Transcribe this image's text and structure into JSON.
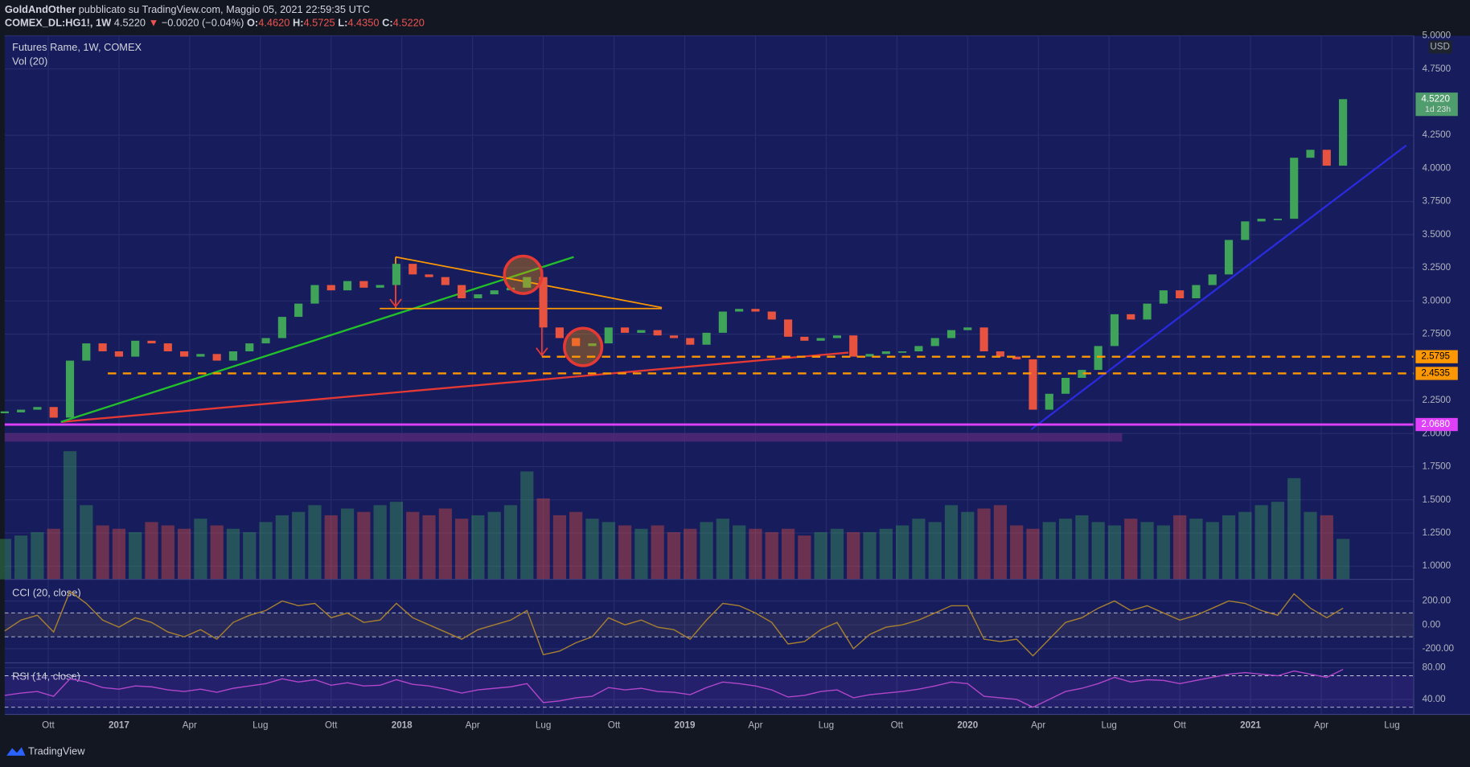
{
  "header": {
    "author": "GoldAndOther",
    "published": "pubblicato su TradingView.com, Maggio 05, 2021 22:59:35 UTC",
    "symbol": "COMEX_DL:HG1!, 1W",
    "last": "4.5220",
    "arrow": "▼",
    "change": "−0.0020 (−0.04%)",
    "o_label": "O:",
    "o": "4.4620",
    "h_label": "H:",
    "h": "4.5725",
    "l_label": "L:",
    "l": "4.4350",
    "c_label": "C:",
    "c": "4.5220"
  },
  "footer": {
    "brand": "TradingView"
  },
  "chart_data": {
    "type": "candlestick",
    "title": "Futures Rame, 1W, COMEX",
    "subtitle": "Vol (20)",
    "currency": "USD",
    "up_color": "#3fa45a",
    "down_color": "#e8533f",
    "grid": true,
    "x": [
      0,
      3,
      6,
      9,
      12,
      15,
      18,
      21,
      24,
      27,
      30,
      33,
      36,
      39,
      42,
      45,
      48,
      51,
      54,
      57,
      60,
      63,
      66,
      69,
      72,
      75,
      78,
      81,
      84,
      87,
      90,
      93,
      96,
      99,
      102,
      105,
      108,
      111,
      114,
      117,
      120,
      123,
      126,
      129,
      132,
      135,
      138,
      141,
      144,
      147,
      150,
      153,
      156,
      159,
      162,
      165,
      168,
      171,
      174,
      177,
      180,
      183,
      186,
      189,
      192,
      195,
      198,
      201,
      204,
      207,
      210,
      213,
      216,
      219,
      222,
      225,
      228,
      231,
      234,
      237,
      240,
      243,
      246
    ],
    "values": [
      2.16,
      2.18,
      2.2,
      2.12,
      2.55,
      2.68,
      2.62,
      2.58,
      2.7,
      2.68,
      2.62,
      2.58,
      2.6,
      2.55,
      2.62,
      2.68,
      2.72,
      2.88,
      2.98,
      3.12,
      3.08,
      3.15,
      3.1,
      3.12,
      3.28,
      3.2,
      3.18,
      3.12,
      3.02,
      3.05,
      3.08,
      3.1,
      3.18,
      2.8,
      2.72,
      2.66,
      2.68,
      2.8,
      2.76,
      2.78,
      2.74,
      2.72,
      2.67,
      2.76,
      2.92,
      2.94,
      2.92,
      2.86,
      2.73,
      2.7,
      2.72,
      2.74,
      2.58,
      2.6,
      2.62,
      2.62,
      2.66,
      2.72,
      2.78,
      2.8,
      2.62,
      2.58,
      2.56,
      2.18,
      2.3,
      2.42,
      2.48,
      2.66,
      2.9,
      2.86,
      2.98,
      3.08,
      3.02,
      3.12,
      3.2,
      3.46,
      3.6,
      3.62,
      3.62,
      4.08,
      4.14,
      4.02,
      4.522
    ],
    "xlim": [
      0,
      259
    ],
    "xticks": [
      {
        "value": 8,
        "label": "Ott"
      },
      {
        "value": 21,
        "label": "2017"
      },
      {
        "value": 34,
        "label": "Apr"
      },
      {
        "value": 47,
        "label": "Lug"
      },
      {
        "value": 60,
        "label": "Ott"
      },
      {
        "value": 73,
        "label": "2018"
      },
      {
        "value": 86,
        "label": "Apr"
      },
      {
        "value": 99,
        "label": "Lug"
      },
      {
        "value": 112,
        "label": "Ott"
      },
      {
        "value": 125,
        "label": "2019"
      },
      {
        "value": 138,
        "label": "Apr"
      },
      {
        "value": 151,
        "label": "Lug"
      },
      {
        "value": 164,
        "label": "Ott"
      },
      {
        "value": 177,
        "label": "2020"
      },
      {
        "value": 190,
        "label": "Apr"
      },
      {
        "value": 203,
        "label": "Lug"
      },
      {
        "value": 216,
        "label": "Ott"
      },
      {
        "value": 229,
        "label": "2021"
      },
      {
        "value": 242,
        "label": "Apr"
      },
      {
        "value": 255,
        "label": "Lug"
      }
    ],
    "ylim": [
      0.9,
      5.0
    ],
    "yticks": [
      {
        "value": 1,
        "label": "1.0000"
      },
      {
        "value": 1.25,
        "label": "1.2500"
      },
      {
        "value": 1.5,
        "label": "1.5000"
      },
      {
        "value": 1.75,
        "label": "1.7500"
      },
      {
        "value": 2,
        "label": "2.0000"
      },
      {
        "value": 2.25,
        "label": "2.2500"
      },
      {
        "value": 2.75,
        "label": "2.7500"
      },
      {
        "value": 3,
        "label": "3.0000"
      },
      {
        "value": 3.25,
        "label": "3.2500"
      },
      {
        "value": 3.5,
        "label": "3.5000"
      },
      {
        "value": 3.75,
        "label": "3.7500"
      },
      {
        "value": 4,
        "label": "4.0000"
      },
      {
        "value": 4.25,
        "label": "4.2500"
      },
      {
        "value": 4.75,
        "label": "4.7500"
      },
      {
        "value": 5,
        "label": "5.0000"
      }
    ],
    "last_price": {
      "value": 4.522,
      "label": "4.5220",
      "countdown": "1d 23h",
      "color": "#4f9c6c"
    },
    "levels": [
      {
        "value": 2.5795,
        "label": "2.5795",
        "color": "#ff9800",
        "dashed": true
      },
      {
        "value": 2.4535,
        "label": "2.4535",
        "color": "#ff9800",
        "dashed": true
      },
      {
        "value": 2.068,
        "label": "2.0680",
        "color": "#e040fb",
        "dashed": false
      }
    ],
    "volume": {
      "ylim": [
        0,
        250
      ],
      "values": [
        60,
        65,
        70,
        75,
        190,
        110,
        80,
        75,
        70,
        85,
        80,
        75,
        90,
        80,
        75,
        70,
        85,
        95,
        100,
        110,
        95,
        105,
        100,
        110,
        115,
        100,
        95,
        105,
        90,
        95,
        100,
        110,
        160,
        120,
        95,
        100,
        90,
        85,
        80,
        75,
        80,
        70,
        75,
        85,
        90,
        80,
        75,
        70,
        75,
        65,
        70,
        75,
        70,
        70,
        75,
        80,
        90,
        85,
        110,
        100,
        105,
        110,
        80,
        75,
        85,
        90,
        95,
        85,
        80,
        90,
        85,
        80,
        95,
        90,
        85,
        95,
        100,
        110,
        115,
        150,
        100,
        95,
        60
      ]
    },
    "indicators": [
      {
        "type": "line",
        "title": "CCI (20, close)",
        "color": "#a8802f",
        "band_color": "#8a7a5a",
        "ylim": [
          -318,
          365
        ],
        "yticks": [
          {
            "value": 200,
            "label": "200.00"
          },
          {
            "value": 0,
            "label": "0.00"
          },
          {
            "value": -200,
            "label": "-200.00"
          }
        ],
        "bands": [
          -100,
          100
        ],
        "values": [
          -50,
          40,
          80,
          -60,
          280,
          180,
          40,
          -20,
          60,
          20,
          -60,
          -100,
          -40,
          -120,
          20,
          80,
          120,
          200,
          160,
          180,
          60,
          100,
          20,
          40,
          180,
          60,
          0,
          -60,
          -120,
          -40,
          0,
          40,
          120,
          -250,
          -220,
          -150,
          -100,
          60,
          0,
          40,
          -20,
          -40,
          -120,
          40,
          180,
          160,
          100,
          20,
          -160,
          -140,
          -40,
          20,
          -200,
          -80,
          -20,
          0,
          40,
          100,
          160,
          160,
          -120,
          -140,
          -120,
          -260,
          -120,
          20,
          60,
          140,
          200,
          120,
          160,
          100,
          40,
          80,
          140,
          200,
          180,
          120,
          80,
          260,
          140,
          60,
          140
        ]
      },
      {
        "type": "line",
        "title": "RSI (14, close)",
        "color": "#b046c9",
        "band_color": "#7e3fc2",
        "ylim": [
          21,
          84
        ],
        "yticks": [
          {
            "value": 80,
            "label": "80.00"
          },
          {
            "value": 40,
            "label": "40.00"
          }
        ],
        "bands": [
          30,
          70
        ],
        "values": [
          45,
          48,
          50,
          44,
          66,
          62,
          55,
          53,
          57,
          56,
          52,
          50,
          53,
          49,
          54,
          57,
          60,
          66,
          62,
          65,
          58,
          61,
          57,
          58,
          65,
          59,
          57,
          53,
          48,
          52,
          54,
          56,
          60,
          36,
          38,
          42,
          44,
          55,
          52,
          54,
          50,
          49,
          46,
          55,
          62,
          60,
          57,
          52,
          43,
          45,
          50,
          52,
          42,
          46,
          48,
          50,
          53,
          57,
          62,
          60,
          44,
          42,
          40,
          30,
          40,
          50,
          54,
          60,
          68,
          62,
          65,
          64,
          60,
          64,
          68,
          72,
          74,
          72,
          70,
          76,
          72,
          68,
          78
        ]
      }
    ]
  }
}
